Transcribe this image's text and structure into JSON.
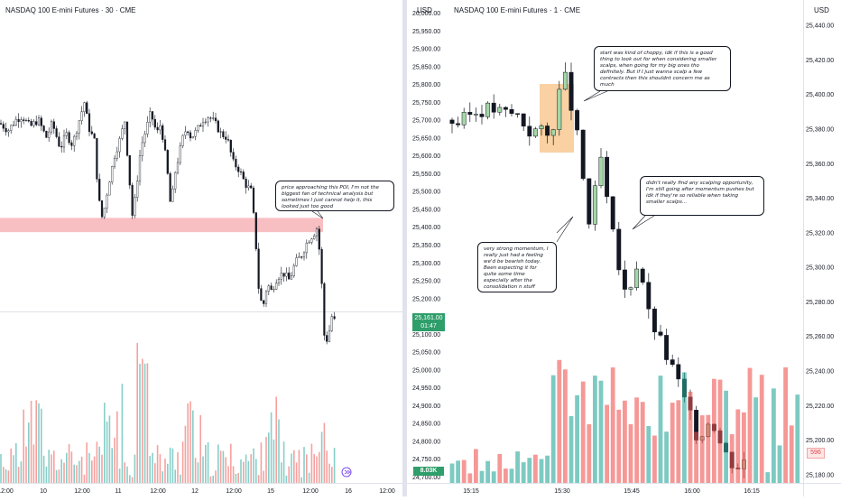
{
  "colors": {
    "up": "#26a69a",
    "down": "#ef5350",
    "zone": "#f7b4b8",
    "highlight": "#f7c68c",
    "price_box": "#2e9e6a"
  },
  "left": {
    "title": "NASDAQ 100 E-mini Futures · 30 · CME",
    "currency": "USD",
    "price_label": "25,161.00",
    "countdown": "01:47",
    "volume_label": "8.03K",
    "note": "price approaching this POI, I'm not the biggest fan of technical analysis but sometimes I just cannot help it, this looked just too good"
  },
  "right": {
    "title": "NASDAQ 100 E-mini Futures · 1 · CME",
    "currency": "USD",
    "volume_label": "596",
    "notes": [
      "start was kind of choppy, idk if this is a good thing to look out for when considering smaller scalps, when going for my big ones tho definitely. But if I just wanna scalp a few contracts then this shouldnt concern me as much",
      "didn't really find any scalping opportunity, I'm still going after momentum pushes but idk if they're so reliable when taking smaller scalps...",
      "very strong momentum, I really just had a feeling we'd be bearish today. Been expecting it for quite some time especially after the consolidation n stuff"
    ]
  },
  "chart_data": [
    {
      "type": "candlestick",
      "title": "NASDAQ 100 E-mini Futures · 30 · CME",
      "y_axis_ticks": [
        "26,000.00",
        "25,950.00",
        "25,900.00",
        "25,850.00",
        "25,800.00",
        "25,750.00",
        "25,700.00",
        "25,650.00",
        "25,600.00",
        "25,550.00",
        "25,500.00",
        "25,450.00",
        "25,400.00",
        "25,350.00",
        "25,300.00",
        "25,250.00",
        "25,200.00",
        "25,150.00",
        "25,100.00",
        "25,050.00",
        "25,000.00",
        "24,950.00",
        "24,900.00",
        "24,850.00",
        "24,800.00",
        "24,750.00",
        "24,700.00"
      ],
      "x_axis_ticks": [
        "12:00",
        "10",
        "12:00",
        "11",
        "12:00",
        "12",
        "12:00",
        "15",
        "12:00",
        "16",
        "12:00"
      ],
      "ylim": [
        24700,
        26000
      ],
      "last_price": 25161.0,
      "zone": [
        25385,
        25425
      ],
      "path": [
        [
          0,
          25690
        ],
        [
          8,
          25670
        ],
        [
          16,
          25700
        ],
        [
          22,
          25710
        ],
        [
          30,
          25680
        ],
        [
          38,
          25700
        ],
        [
          46,
          25650
        ],
        [
          52,
          25690
        ],
        [
          60,
          25620
        ],
        [
          66,
          25660
        ],
        [
          72,
          25630
        ],
        [
          78,
          25690
        ],
        [
          84,
          25750
        ],
        [
          88,
          25680
        ],
        [
          94,
          25640
        ],
        [
          98,
          25480
        ],
        [
          102,
          25420
        ],
        [
          108,
          25520
        ],
        [
          114,
          25600
        ],
        [
          120,
          25650
        ],
        [
          124,
          25700
        ],
        [
          128,
          25560
        ],
        [
          132,
          25420
        ],
        [
          136,
          25520
        ],
        [
          140,
          25620
        ],
        [
          146,
          25680
        ],
        [
          150,
          25720
        ],
        [
          156,
          25660
        ],
        [
          160,
          25690
        ],
        [
          166,
          25570
        ],
        [
          170,
          25450
        ],
        [
          174,
          25550
        ],
        [
          178,
          25600
        ],
        [
          182,
          25650
        ],
        [
          186,
          25680
        ],
        [
          190,
          25650
        ],
        [
          196,
          25670
        ],
        [
          202,
          25700
        ],
        [
          208,
          25710
        ],
        [
          214,
          25690
        ],
        [
          220,
          25660
        ],
        [
          226,
          25650
        ],
        [
          232,
          25580
        ],
        [
          238,
          25560
        ],
        [
          244,
          25520
        ],
        [
          250,
          25500
        ],
        [
          254,
          25380
        ],
        [
          258,
          25200
        ],
        [
          262,
          25180
        ],
        [
          266,
          25240
        ],
        [
          270,
          25220
        ],
        [
          276,
          25260
        ],
        [
          282,
          25270
        ],
        [
          288,
          25250
        ],
        [
          294,
          25300
        ],
        [
          300,
          25320
        ],
        [
          306,
          25360
        ],
        [
          312,
          25380
        ],
        [
          316,
          25400
        ],
        [
          320,
          25250
        ],
        [
          322,
          25100
        ],
        [
          326,
          25080
        ],
        [
          330,
          25150
        ],
        [
          334,
          25130
        ]
      ]
    },
    {
      "type": "candlestick",
      "title": "NASDAQ 100 E-mini Futures · 1 · CME",
      "y_axis_ticks": [
        "25,440.00",
        "25,420.00",
        "25,400.00",
        "25,380.00",
        "25,360.00",
        "25,340.00",
        "25,320.00",
        "25,300.00",
        "25,280.00",
        "25,260.00",
        "25,240.00",
        "25,220.00",
        "25,200.00",
        "25,180.00"
      ],
      "x_axis_ticks": [
        "15:15",
        "15:30",
        "15:45",
        "16:00",
        "16:15"
      ],
      "ylim": [
        25175,
        25445
      ],
      "path": [
        [
          0,
          25385
        ],
        [
          10,
          25383
        ],
        [
          20,
          25388
        ],
        [
          30,
          25390
        ],
        [
          40,
          25392
        ],
        [
          50,
          25390
        ],
        [
          60,
          25389
        ],
        [
          70,
          25388
        ],
        [
          80,
          25378
        ],
        [
          90,
          25380
        ],
        [
          100,
          25375
        ],
        [
          106,
          25385
        ],
        [
          112,
          25405
        ],
        [
          118,
          25410
        ],
        [
          122,
          25395
        ],
        [
          130,
          25372
        ],
        [
          136,
          25345
        ],
        [
          142,
          25320
        ],
        [
          148,
          25350
        ],
        [
          152,
          25365
        ],
        [
          158,
          25340
        ],
        [
          164,
          25320
        ],
        [
          170,
          25300
        ],
        [
          176,
          25285
        ],
        [
          182,
          25290
        ],
        [
          188,
          25300
        ],
        [
          192,
          25310
        ],
        [
          196,
          25280
        ],
        [
          202,
          25270
        ],
        [
          208,
          25262
        ],
        [
          214,
          25255
        ],
        [
          220,
          25245
        ],
        [
          226,
          25240
        ],
        [
          232,
          25230
        ],
        [
          238,
          25220
        ],
        [
          244,
          25210
        ],
        [
          250,
          25200
        ],
        [
          256,
          25205
        ],
        [
          262,
          25215
        ],
        [
          268,
          25205
        ],
        [
          274,
          25195
        ],
        [
          280,
          25190
        ],
        [
          286,
          25185
        ],
        [
          292,
          25185
        ],
        [
          298,
          25190
        ]
      ]
    }
  ]
}
